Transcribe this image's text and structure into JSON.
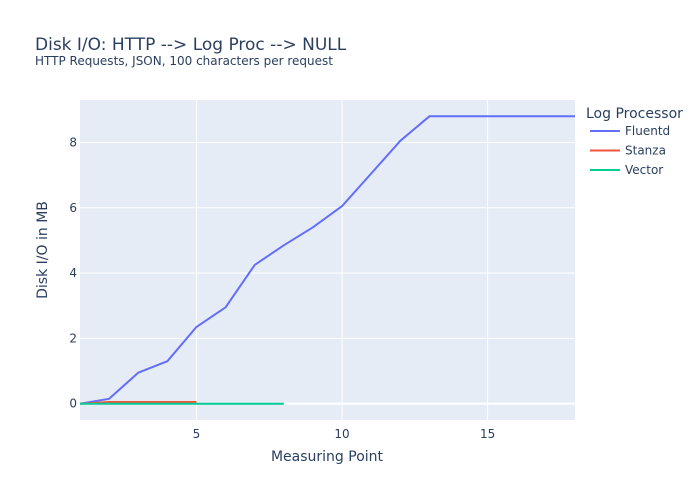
{
  "chart_data": {
    "type": "line",
    "title": "Disk I/O: HTTP --> Log Proc --> NULL",
    "subtitle": "HTTP Requests, JSON, 100 characters per request",
    "xlabel": "Measuring Point",
    "ylabel": "Disk I/O in MB",
    "xlim": [
      1,
      18
    ],
    "ylim": [
      -0.5,
      9.3
    ],
    "x_ticks": [
      5,
      10,
      15
    ],
    "y_ticks": [
      0,
      2,
      4,
      6,
      8
    ],
    "grid": true,
    "legend_title": "Log Processor",
    "legend_position": "top-right, outside plot",
    "series": [
      {
        "name": "Fluentd",
        "color": "#636efa",
        "x": [
          1,
          2,
          3,
          4,
          5,
          6,
          7,
          8,
          9,
          10,
          11,
          12,
          13,
          14,
          15,
          16,
          17,
          18
        ],
        "y": [
          0,
          0.15,
          0.95,
          1.3,
          2.35,
          2.95,
          4.25,
          4.85,
          5.4,
          6.05,
          7.05,
          8.05,
          8.8,
          8.8,
          8.8,
          8.8,
          8.8,
          8.8
        ]
      },
      {
        "name": "Stanza",
        "color": "#ef553b",
        "x": [
          1,
          2,
          3,
          4,
          5
        ],
        "y": [
          0,
          0.05,
          0.05,
          0.05,
          0.05
        ]
      },
      {
        "name": "Vector",
        "color": "#00cc96",
        "x": [
          1,
          2,
          3,
          4,
          5,
          6,
          7,
          8
        ],
        "y": [
          0,
          0,
          0,
          0,
          0,
          0,
          0,
          0
        ]
      }
    ]
  }
}
